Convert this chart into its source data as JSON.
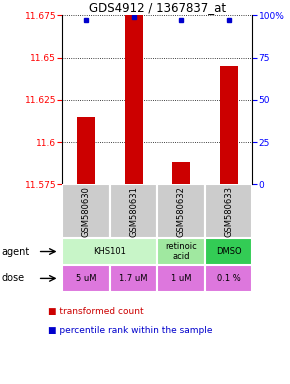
{
  "title": "GDS4912 / 1367837_at",
  "samples": [
    "GSM580630",
    "GSM580631",
    "GSM580632",
    "GSM580633"
  ],
  "bar_values": [
    11.615,
    11.675,
    11.588,
    11.645
  ],
  "percentile_values": [
    97,
    99,
    97,
    97
  ],
  "ylim": [
    11.575,
    11.675
  ],
  "yticks": [
    11.575,
    11.6,
    11.625,
    11.65,
    11.675
  ],
  "ytick_labels": [
    "11.575",
    "11.6",
    "11.625",
    "11.65",
    "11.675"
  ],
  "y2lim": [
    0,
    100
  ],
  "y2ticks": [
    0,
    25,
    50,
    75,
    100
  ],
  "y2tick_labels": [
    "0",
    "25",
    "50",
    "75",
    "100%"
  ],
  "bar_color": "#cc0000",
  "dot_color": "#0000cc",
  "agent_info": [
    [
      0,
      1,
      "KHS101",
      "#c8f5c8"
    ],
    [
      2,
      2,
      "retinoic\nacid",
      "#a0e8a0"
    ],
    [
      3,
      3,
      "DMSO",
      "#33cc55"
    ]
  ],
  "dose_labels": [
    "5 uM",
    "1.7 uM",
    "1 uM",
    "0.1 %"
  ],
  "dose_color": "#dd77dd",
  "gsm_bg_color": "#cccccc",
  "legend_bar_color": "#cc0000",
  "legend_dot_color": "#0000cc"
}
